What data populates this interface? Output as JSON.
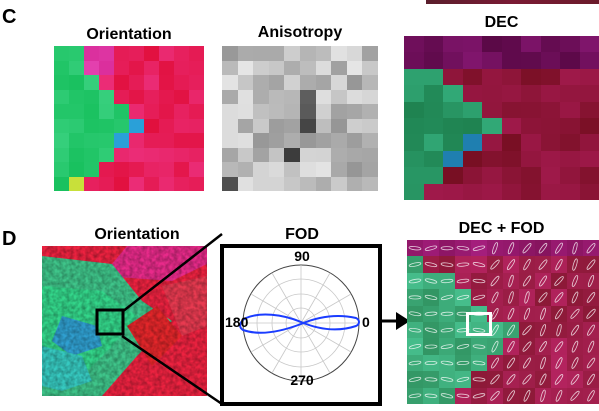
{
  "panels": {
    "c": {
      "letter": "C",
      "orientation_title": "Orientation",
      "anisotropy_title": "Anisotropy",
      "dec_title": "DEC"
    },
    "d": {
      "letter": "D",
      "orientation_title": "Orientation",
      "fod_title": "FOD",
      "dec_fod_title": "DEC + FOD",
      "polar_labels": {
        "top": "90",
        "left": "180",
        "right": "0",
        "bottom": "270"
      }
    }
  },
  "colors": {
    "fod_curve": "#1a3cff",
    "highlight_box": "#ffffff",
    "zoom_box": "#000000"
  }
}
